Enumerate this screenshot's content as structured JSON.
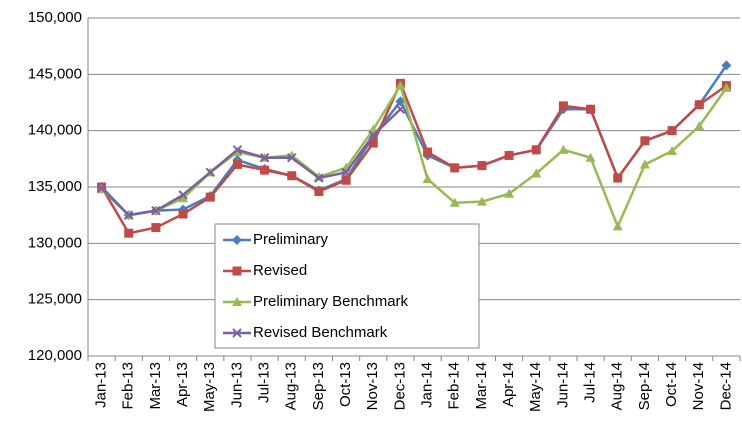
{
  "chart_data": {
    "type": "line",
    "categories": [
      "Jan-13",
      "Feb-13",
      "Mar-13",
      "Apr-13",
      "May-13",
      "Jun-13",
      "Jul-13",
      "Aug-13",
      "Sep-13",
      "Oct-13",
      "Nov-13",
      "Dec-13",
      "Jan-14",
      "Feb-14",
      "Mar-14",
      "Apr-14",
      "May-14",
      "Jun-14",
      "Jul-14",
      "Aug-14",
      "Sep-14",
      "Oct-14",
      "Nov-14",
      "Dec-14"
    ],
    "series": [
      {
        "name": "Preliminary",
        "color": "#4a7ebb",
        "marker": "diamond",
        "values": [
          135000,
          132500,
          132900,
          133000,
          134200,
          137400,
          136600,
          136000,
          134700,
          135700,
          139500,
          142600,
          137800,
          136700,
          136900,
          137800,
          138300,
          141900,
          141900,
          135800,
          139100,
          140000,
          142300,
          145800
        ]
      },
      {
        "name": "Revised",
        "color": "#be4b48",
        "marker": "square",
        "values": [
          135000,
          130900,
          131400,
          132600,
          134100,
          137000,
          136500,
          136000,
          134600,
          135600,
          138900,
          144200,
          138100,
          136700,
          136900,
          137800,
          138300,
          142200,
          141900,
          135800,
          139100,
          140000,
          142300,
          144000
        ]
      },
      {
        "name": "Preliminary Benchmark",
        "color": "#98b954",
        "marker": "triangle",
        "values": [
          134800,
          132500,
          132900,
          134000,
          136300,
          138100,
          137600,
          137800,
          135900,
          136700,
          140100,
          144000,
          135700,
          133600,
          133700,
          134400,
          136200,
          138300,
          137600,
          131500,
          137000,
          138200,
          140400,
          143800
        ]
      },
      {
        "name": "Revised Benchmark",
        "color": "#7d60a0",
        "marker": "x",
        "values": [
          134900,
          132500,
          132900,
          134300,
          136300,
          138300,
          137600,
          137600,
          135800,
          136300,
          139600,
          141900,
          null,
          null,
          null,
          null,
          null,
          null,
          null,
          null,
          null,
          null,
          null,
          null
        ]
      }
    ],
    "ylim": [
      120000,
      150000
    ],
    "yticks": [
      {
        "value": 120000,
        "label": "120,000"
      },
      {
        "value": 125000,
        "label": "125,000"
      },
      {
        "value": 130000,
        "label": "130,000"
      },
      {
        "value": 135000,
        "label": "135,000"
      },
      {
        "value": 140000,
        "label": "140,000"
      },
      {
        "value": 145000,
        "label": "145,000"
      },
      {
        "value": 150000,
        "label": "150,000"
      }
    ],
    "grid": true
  }
}
